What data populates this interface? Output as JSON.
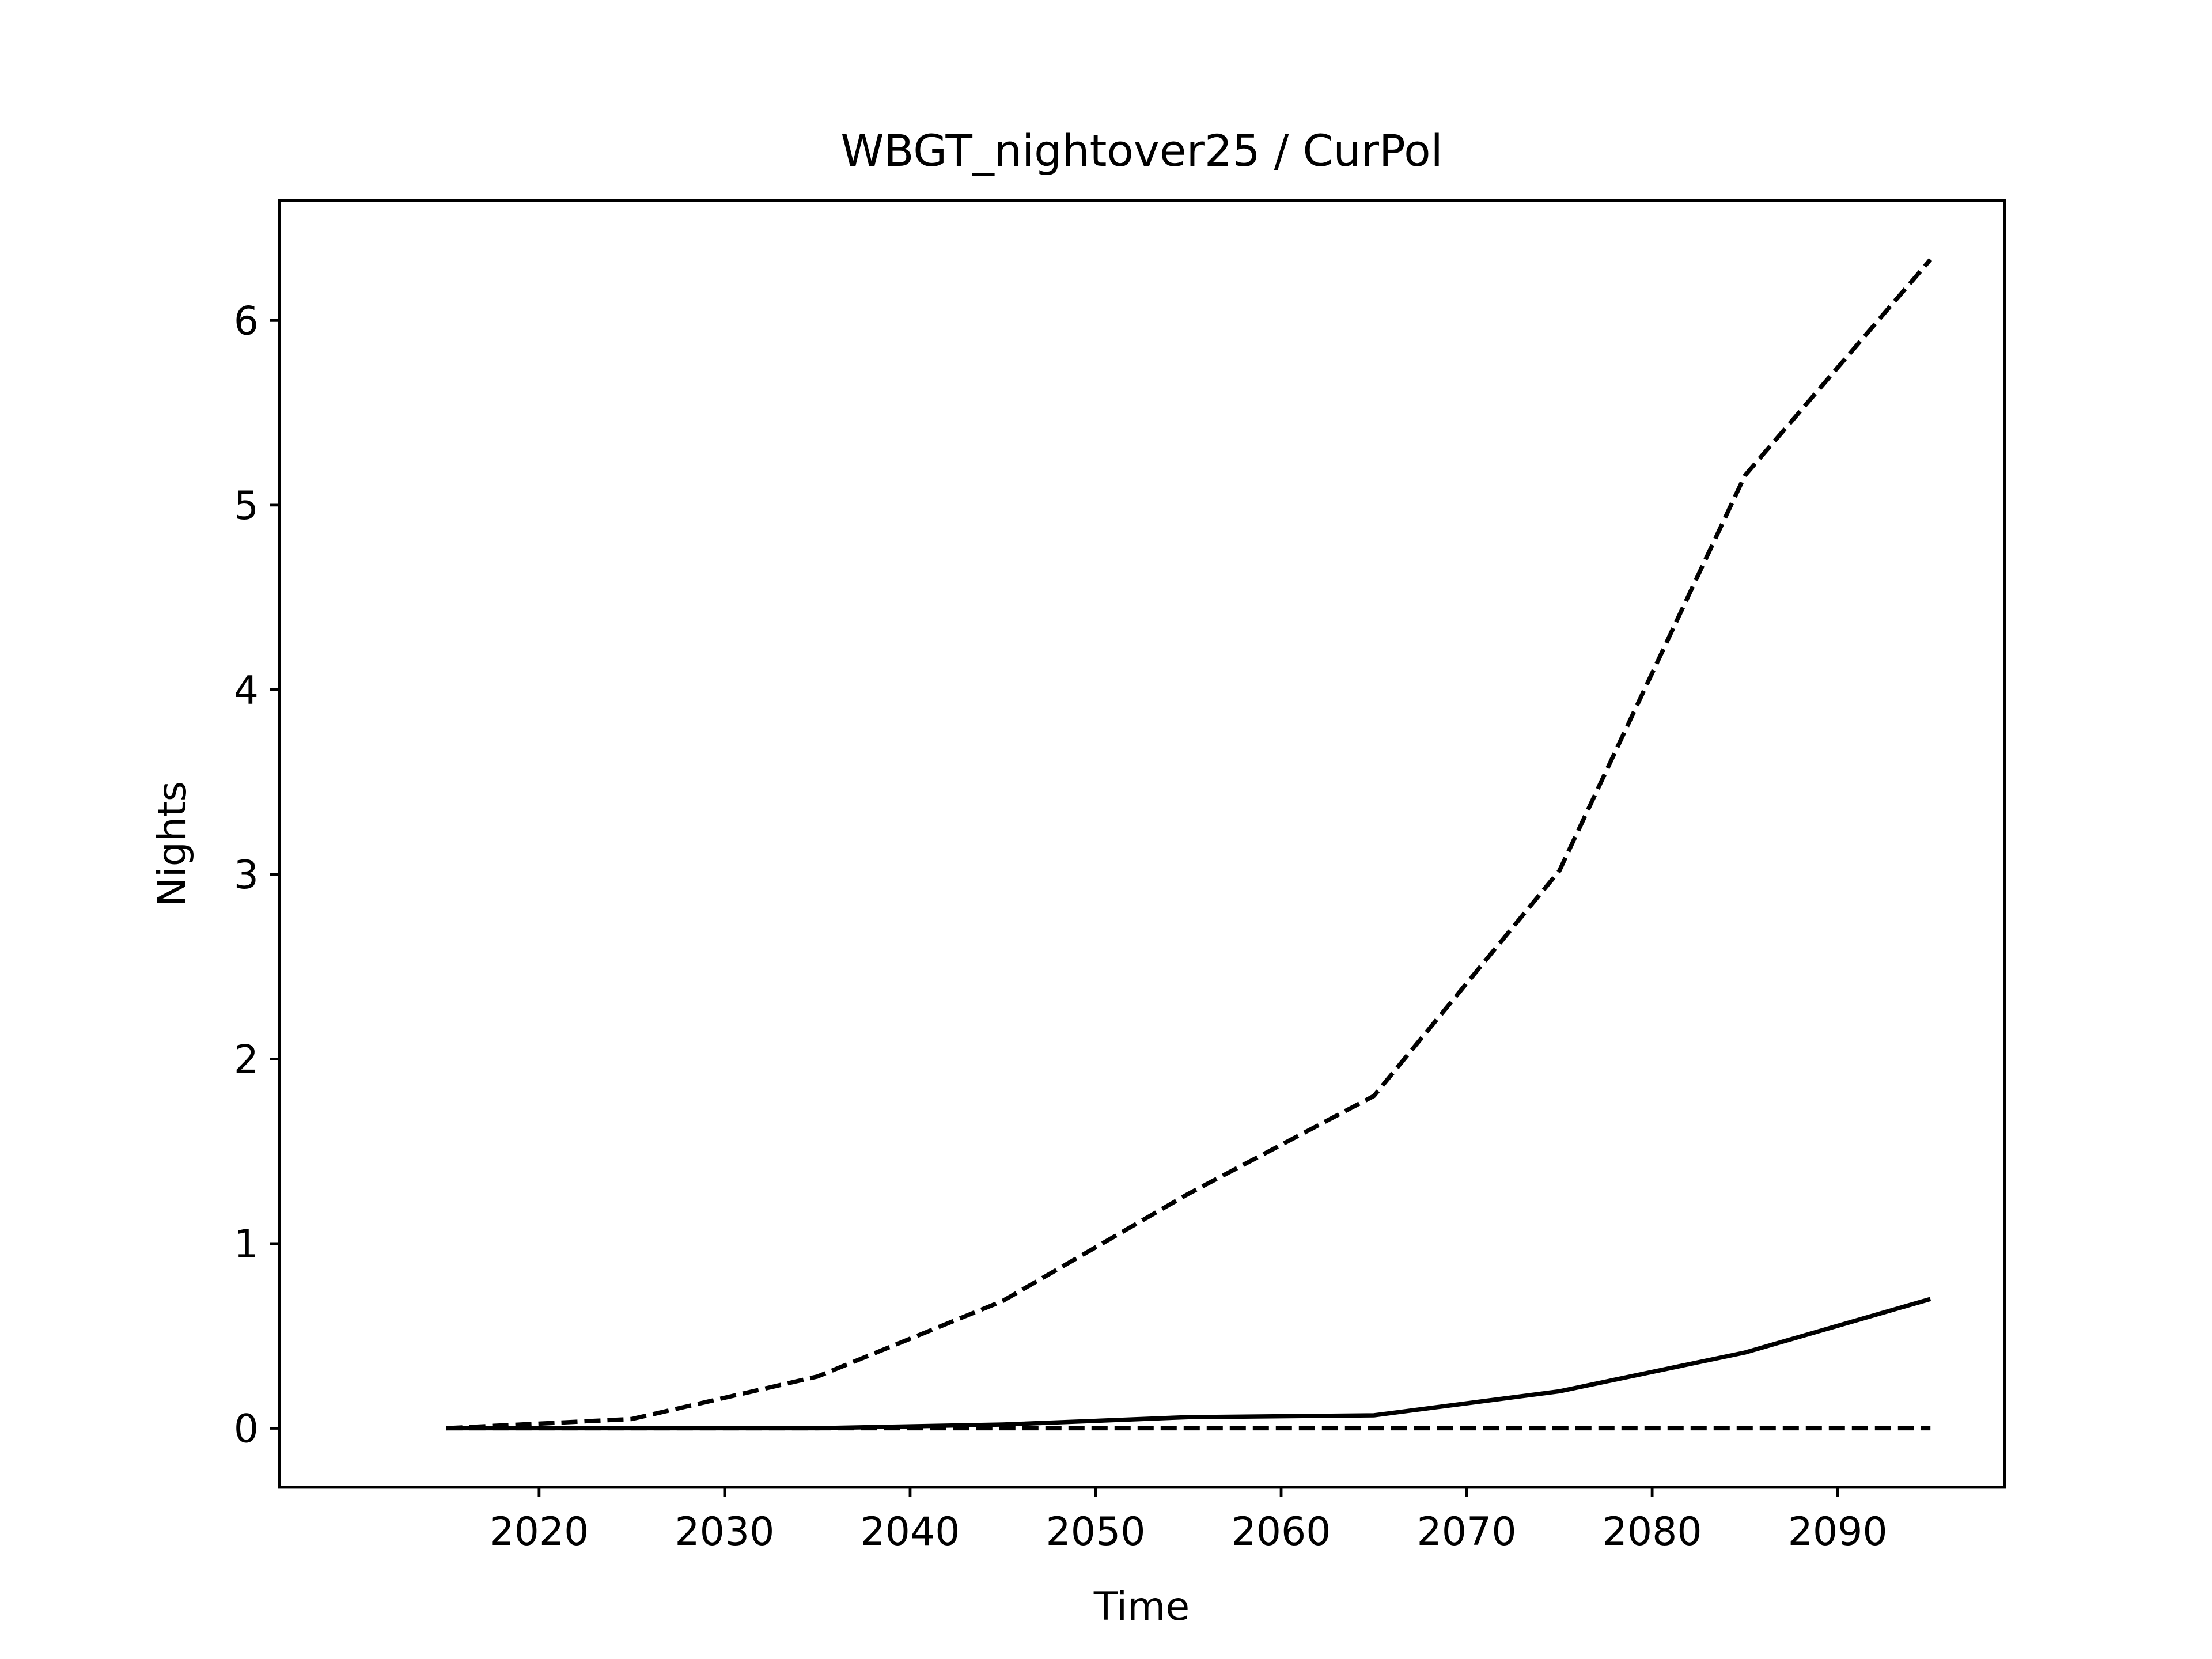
{
  "chart_data": {
    "type": "line",
    "title": "WBGT_nightover25 / CurPol",
    "xlabel": "Time",
    "ylabel": "Nights",
    "x": [
      2015,
      2025,
      2035,
      2045,
      2055,
      2065,
      2075,
      2085,
      2095
    ],
    "xlim": [
      2006,
      2099
    ],
    "ylim": [
      -0.32,
      6.65
    ],
    "xticks": [
      2020,
      2030,
      2040,
      2050,
      2060,
      2070,
      2080,
      2090
    ],
    "yticks": [
      0,
      1,
      2,
      3,
      4,
      5,
      6
    ],
    "grid": false,
    "series": [
      {
        "style": "dashed",
        "values": [
          0.0,
          0.05,
          0.28,
          0.69,
          1.27,
          1.8,
          3.02,
          5.16,
          6.33
        ]
      },
      {
        "style": "solid",
        "values": [
          0.0,
          0.0,
          0.0,
          0.02,
          0.06,
          0.07,
          0.2,
          0.41,
          0.7
        ]
      },
      {
        "style": "dashed",
        "values": [
          0.0,
          0.0,
          0.0,
          0.0,
          0.0,
          0.0,
          0.0,
          0.0,
          0.0
        ]
      }
    ],
    "line_color": "#000000"
  }
}
